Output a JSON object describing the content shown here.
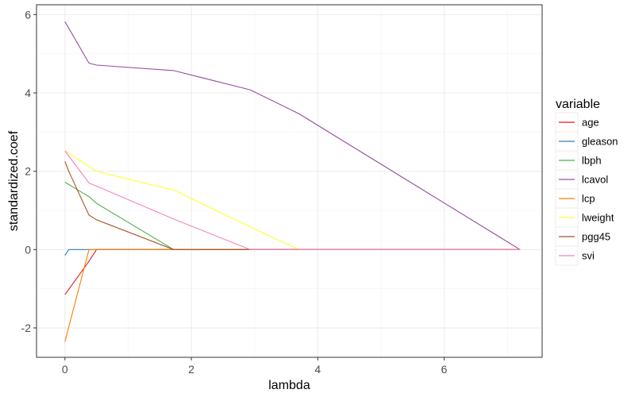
{
  "chart_data": {
    "type": "line",
    "title": "",
    "xlabel": "lambda",
    "ylabel": "standardized.coef",
    "xlim": [
      -0.45,
      7.55
    ],
    "ylim": [
      -2.75,
      6.25
    ],
    "x_ticks": [
      0,
      2,
      4,
      6
    ],
    "y_ticks": [
      -2,
      0,
      2,
      4,
      6
    ],
    "grid": true,
    "legend": {
      "title": "variable",
      "position": "right"
    },
    "series": [
      {
        "name": "age",
        "color": "#e41a1c",
        "points": [
          [
            0,
            -1.15
          ],
          [
            0.38,
            -0.3
          ],
          [
            0.5,
            0
          ],
          [
            7.2,
            0
          ]
        ]
      },
      {
        "name": "gleason",
        "color": "#377eb8",
        "points": [
          [
            0,
            -0.15
          ],
          [
            0.06,
            0
          ],
          [
            7.2,
            0
          ]
        ]
      },
      {
        "name": "lbph",
        "color": "#4daf4a",
        "points": [
          [
            0,
            1.72
          ],
          [
            0.38,
            1.35
          ],
          [
            0.5,
            1.18
          ],
          [
            1.72,
            0
          ],
          [
            7.2,
            0
          ]
        ]
      },
      {
        "name": "lcavol",
        "color": "#984ea3",
        "points": [
          [
            0,
            5.82
          ],
          [
            0.38,
            4.76
          ],
          [
            0.5,
            4.71
          ],
          [
            1.72,
            4.57
          ],
          [
            2.93,
            4.08
          ],
          [
            3.7,
            3.47
          ],
          [
            7.2,
            0
          ]
        ]
      },
      {
        "name": "lcp",
        "color": "#ff7f00",
        "points": [
          [
            0,
            -2.35
          ],
          [
            0.38,
            0
          ],
          [
            7.2,
            0
          ]
        ]
      },
      {
        "name": "lweight",
        "color": "#ffff33",
        "points": [
          [
            0,
            2.52
          ],
          [
            0.5,
            2.0
          ],
          [
            1.72,
            1.52
          ],
          [
            2.93,
            0.58
          ],
          [
            3.7,
            0
          ],
          [
            7.2,
            0
          ]
        ]
      },
      {
        "name": "pgg45",
        "color": "#a65628",
        "points": [
          [
            0,
            2.25
          ],
          [
            0.06,
            2.0
          ],
          [
            0.38,
            0.88
          ],
          [
            0.5,
            0.76
          ],
          [
            1.72,
            0
          ],
          [
            7.2,
            0
          ]
        ]
      },
      {
        "name": "svi",
        "color": "#f781bf",
        "points": [
          [
            0,
            2.52
          ],
          [
            0.38,
            1.7
          ],
          [
            0.5,
            1.62
          ],
          [
            1.72,
            0.78
          ],
          [
            2.93,
            0
          ],
          [
            7.2,
            0
          ]
        ]
      }
    ]
  }
}
